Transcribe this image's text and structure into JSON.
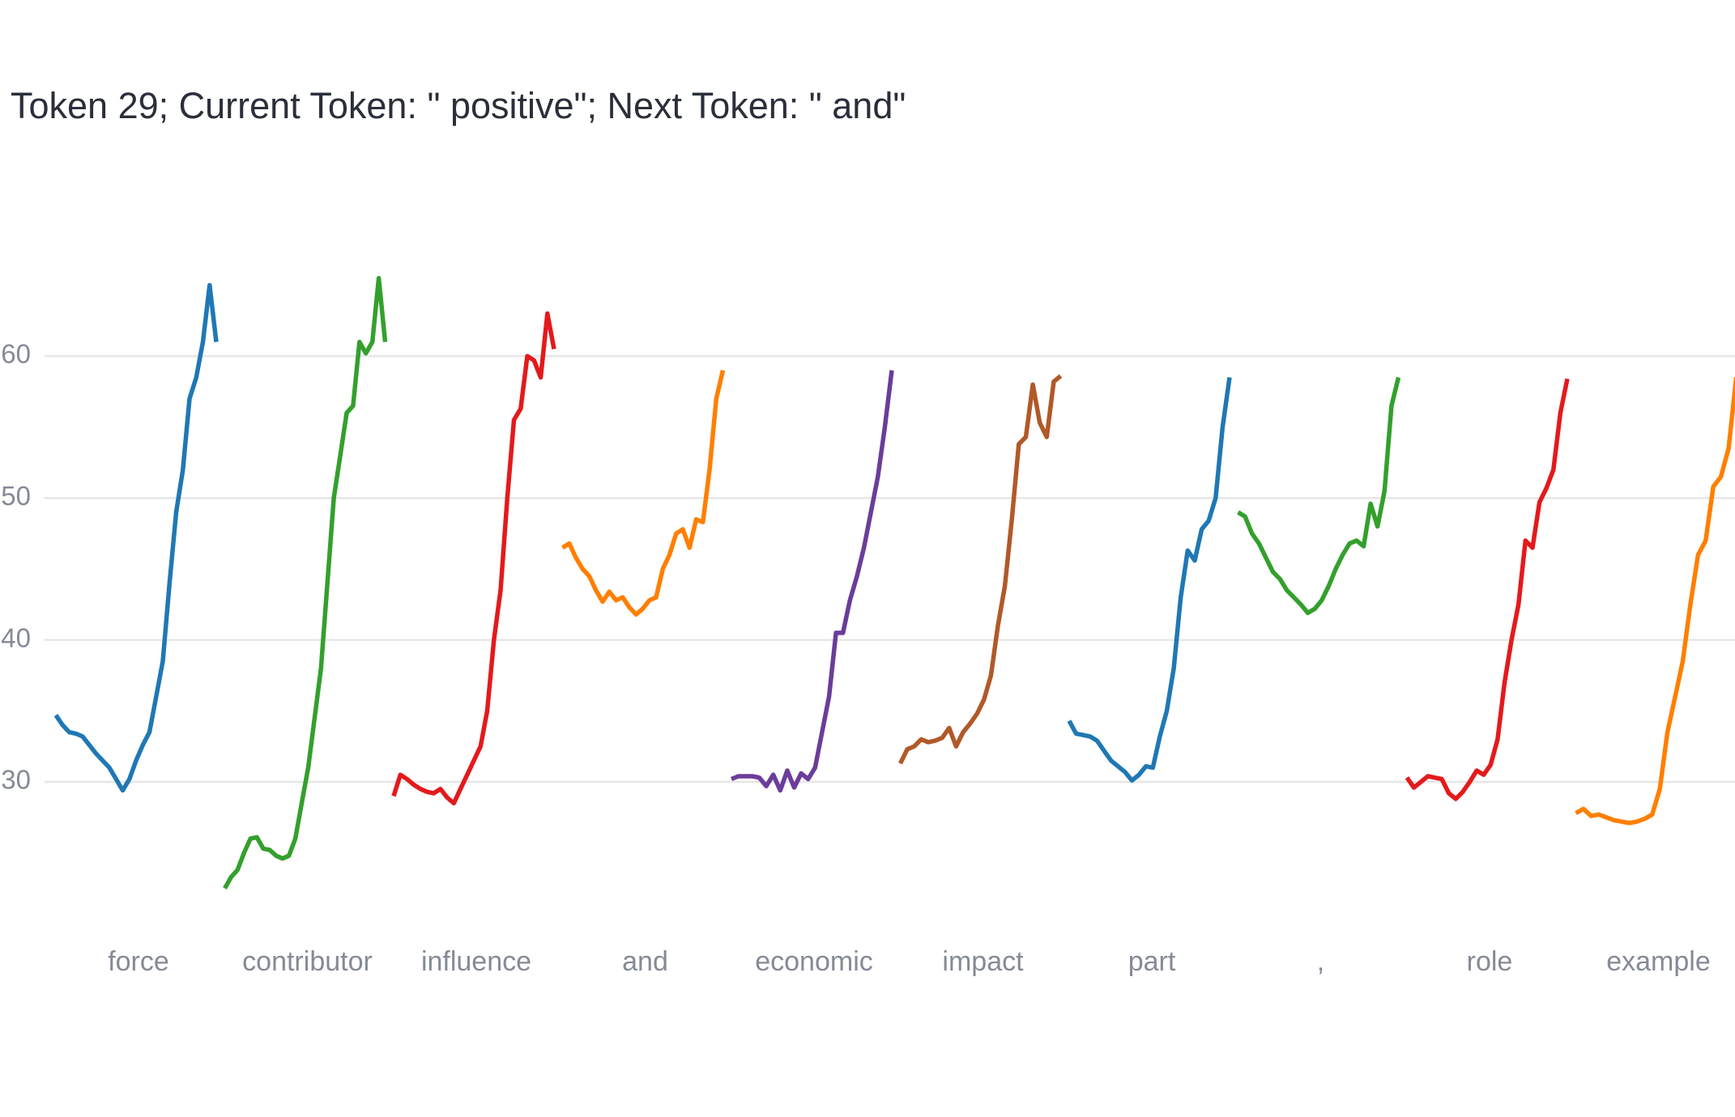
{
  "chart_data": {
    "type": "line",
    "title": "Token 29; Current Token: \" positive\"; Next Token: \" and\"",
    "ylim": [
      20.36,
      69.41
    ],
    "yticks": [
      30,
      40,
      50,
      60
    ],
    "grid": true,
    "series": [
      {
        "name": "force",
        "color": "#1f78b4",
        "values": [
          34.7,
          34,
          33.5,
          33.4,
          33.2,
          32.6,
          32,
          31.5,
          31,
          30.2,
          29.4,
          30.2,
          31.5,
          32.6,
          33.5,
          36,
          38.5,
          44,
          49,
          52,
          57,
          58.5,
          61,
          65,
          61
        ]
      },
      {
        "name": "contributor",
        "color": "#33a02c",
        "values": [
          22.5,
          23.3,
          23.8,
          25,
          26,
          26.1,
          25.3,
          25.2,
          24.8,
          24.6,
          24.8,
          26,
          28.5,
          31,
          34.5,
          38,
          44,
          50,
          53,
          56,
          56.5,
          61,
          60.2,
          61,
          65.5,
          61
        ]
      },
      {
        "name": "influence",
        "color": "#e31a1c",
        "values": [
          29,
          30.5,
          30.2,
          29.8,
          29.5,
          29.3,
          29.2,
          29.5,
          28.9,
          28.5,
          29.5,
          30.5,
          31.5,
          32.5,
          35,
          40,
          43.5,
          50,
          55.5,
          56.3,
          60,
          59.7,
          58.5,
          63,
          60.5
        ]
      },
      {
        "name": "and",
        "color": "#ff7f00",
        "values": [
          46.5,
          46.8,
          45.8,
          45,
          44.5,
          43.5,
          42.7,
          43.4,
          42.8,
          43,
          42.3,
          41.8,
          42.2,
          42.8,
          43,
          45,
          46,
          47.5,
          47.8,
          46.5,
          48.5,
          48.3,
          52,
          57,
          59
        ]
      },
      {
        "name": "economic",
        "color": "#6a3d9a",
        "values": [
          30.2,
          30.4,
          30.4,
          30.4,
          30.3,
          29.7,
          30.5,
          29.4,
          30.8,
          29.6,
          30.6,
          30.2,
          31,
          33.5,
          36,
          40.5,
          40.5,
          42.8,
          44.5,
          46.5,
          49,
          51.5,
          55,
          59
        ]
      },
      {
        "name": "impact",
        "color": "#b15928",
        "values": [
          31.3,
          32.3,
          32.5,
          33,
          32.8,
          32.9,
          33.1,
          33.8,
          32.5,
          33.5,
          34.1,
          34.8,
          35.8,
          37.5,
          41,
          43.8,
          48.5,
          53.8,
          54.3,
          58,
          55.3,
          54.3,
          58.2,
          58.6
        ]
      },
      {
        "name": "part",
        "color": "#1f78b4",
        "values": [
          34.3,
          33.4,
          33.3,
          33.2,
          32.9,
          32.2,
          31.5,
          31.1,
          30.7,
          30.1,
          30.5,
          31.1,
          31,
          33.2,
          35,
          38,
          43,
          46.3,
          45.6,
          47.8,
          48.4,
          50,
          55,
          58.5
        ]
      },
      {
        "name": ",",
        "color": "#33a02c",
        "values": [
          49,
          48.7,
          47.5,
          46.8,
          45.8,
          44.8,
          44.3,
          43.5,
          43,
          42.5,
          41.9,
          42.2,
          42.8,
          43.8,
          45,
          46,
          46.8,
          47,
          46.6,
          49.6,
          48,
          50.5,
          56.5,
          58.5
        ]
      },
      {
        "name": "role",
        "color": "#e31a1c",
        "values": [
          30.3,
          29.6,
          30,
          30.4,
          30.3,
          30.2,
          29.2,
          28.8,
          29.3,
          30,
          30.8,
          30.5,
          31.2,
          33,
          37,
          40,
          42.5,
          47,
          46.5,
          49.7,
          50.7,
          52,
          56,
          58.4
        ]
      },
      {
        "name": "example",
        "color": "#ff7f00",
        "values": [
          27.8,
          28.1,
          27.6,
          27.7,
          27.5,
          27.3,
          27.2,
          27.1,
          27.2,
          27.4,
          27.7,
          29.5,
          33.5,
          36,
          38.5,
          42.5,
          46,
          47,
          50.8,
          51.5,
          53.5,
          58.5
        ]
      }
    ]
  }
}
